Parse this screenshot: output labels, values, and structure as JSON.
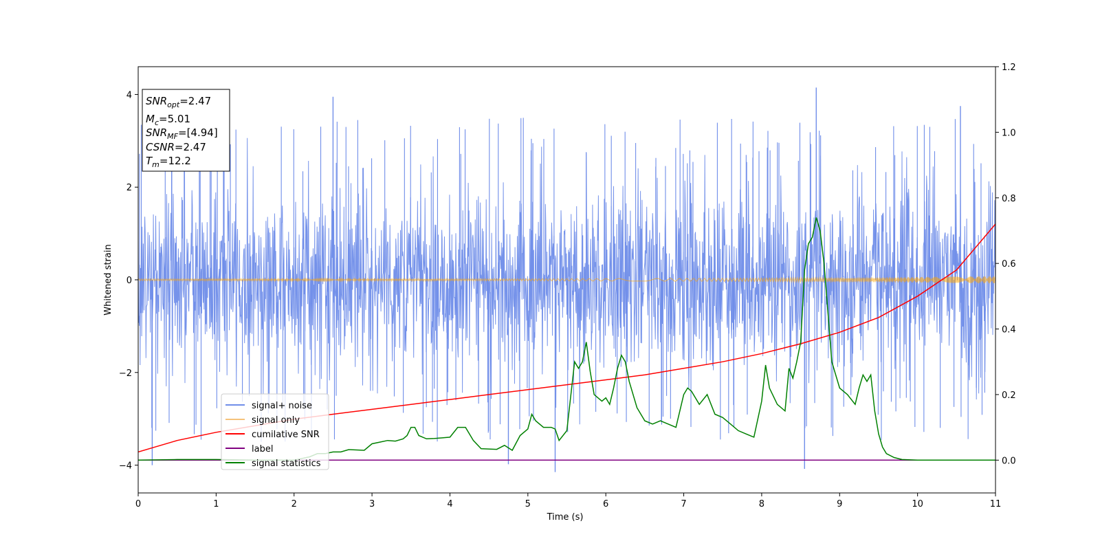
{
  "chart_data": {
    "type": "line",
    "xlabel": "Time (s)",
    "ylabel": "Whitened strain",
    "xlim": [
      0,
      11
    ],
    "ylim_left": [
      -4.6,
      4.6
    ],
    "ylim_right": [
      -0.1,
      1.2
    ],
    "x_ticks": [
      "0",
      "1",
      "2",
      "3",
      "4",
      "5",
      "6",
      "7",
      "8",
      "9",
      "10",
      "11"
    ],
    "y_ticks_left": [
      "−4",
      "−2",
      "0",
      "2",
      "4"
    ],
    "y_ticks_right": [
      "0.0",
      "0.2",
      "0.4",
      "0.6",
      "0.8",
      "1.0",
      "1.2"
    ],
    "grid": false,
    "legend_position": "lower-left",
    "colors": {
      "noise": "#4169E1",
      "signal_only": "#FFA500",
      "cumulative_snr": "#FF0000",
      "label": "#800080",
      "signal_statistics": "#008000"
    },
    "series": [
      {
        "name": "signal+ noise",
        "axis": "left",
        "style": "dense noise band, mostly between -2 and 2.3, spikes to about ±4",
        "approx_envelope": [
          -2.2,
          2.3
        ],
        "notable_spikes": [
          [
            0.18,
            -4.0
          ],
          [
            2.5,
            3.95
          ],
          [
            4.75,
            -3.98
          ],
          [
            5.35,
            -4.15
          ],
          [
            8.55,
            -4.08
          ],
          [
            8.7,
            4.15
          ],
          [
            10.55,
            3.75
          ]
        ]
      },
      {
        "name": "signal only",
        "axis": "left",
        "style": "thin band around 0, widening slightly toward the end",
        "amplitude_start": 0.02,
        "amplitude_end": 0.08
      },
      {
        "name": "cumilative SNR",
        "axis": "right",
        "x": [
          0,
          0.5,
          1,
          1.5,
          2,
          2.5,
          3,
          3.5,
          4,
          4.5,
          5,
          5.5,
          6,
          6.5,
          7,
          7.5,
          8,
          8.5,
          9,
          9.5,
          10,
          10.5,
          11
        ],
        "y": [
          0.025,
          0.06,
          0.085,
          0.105,
          0.125,
          0.14,
          0.155,
          0.17,
          0.185,
          0.2,
          0.215,
          0.23,
          0.245,
          0.26,
          0.28,
          0.3,
          0.325,
          0.355,
          0.39,
          0.435,
          0.5,
          0.58,
          0.72
        ]
      },
      {
        "name": "label",
        "axis": "right",
        "x": [
          0,
          11
        ],
        "y": [
          0.0,
          0.0
        ]
      },
      {
        "name": "signal statistics",
        "axis": "right",
        "x": [
          0,
          0.5,
          1,
          1.5,
          2,
          2.2,
          2.3,
          2.4,
          2.5,
          2.6,
          2.7,
          2.9,
          3.0,
          3.1,
          3.2,
          3.3,
          3.4,
          3.45,
          3.5,
          3.55,
          3.6,
          3.7,
          3.8,
          3.9,
          4.0,
          4.1,
          4.15,
          4.2,
          4.3,
          4.4,
          4.5,
          4.6,
          4.7,
          4.8,
          4.9,
          5.0,
          5.05,
          5.1,
          5.2,
          5.3,
          5.35,
          5.4,
          5.5,
          5.6,
          5.65,
          5.7,
          5.75,
          5.8,
          5.85,
          5.9,
          5.95,
          6.0,
          6.05,
          6.1,
          6.15,
          6.2,
          6.25,
          6.3,
          6.4,
          6.5,
          6.6,
          6.7,
          6.8,
          6.9,
          7.0,
          7.05,
          7.1,
          7.2,
          7.3,
          7.4,
          7.5,
          7.6,
          7.7,
          7.8,
          7.9,
          8.0,
          8.05,
          8.1,
          8.2,
          8.3,
          8.35,
          8.4,
          8.45,
          8.5,
          8.55,
          8.6,
          8.65,
          8.7,
          8.75,
          8.8,
          8.85,
          8.9,
          9.0,
          9.1,
          9.2,
          9.25,
          9.3,
          9.35,
          9.4,
          9.45,
          9.5,
          9.55,
          9.6,
          9.7,
          9.8,
          10.0,
          10.5,
          11.0
        ],
        "y": [
          0.0,
          0.002,
          0.002,
          0.0,
          0.0,
          0.01,
          0.02,
          0.02,
          0.025,
          0.025,
          0.032,
          0.03,
          0.05,
          0.055,
          0.06,
          0.058,
          0.065,
          0.075,
          0.1,
          0.1,
          0.075,
          0.065,
          0.066,
          0.068,
          0.07,
          0.1,
          0.1,
          0.1,
          0.06,
          0.035,
          0.034,
          0.033,
          0.045,
          0.03,
          0.075,
          0.095,
          0.14,
          0.12,
          0.1,
          0.1,
          0.095,
          0.06,
          0.09,
          0.3,
          0.28,
          0.3,
          0.36,
          0.27,
          0.2,
          0.19,
          0.18,
          0.19,
          0.17,
          0.22,
          0.28,
          0.32,
          0.3,
          0.24,
          0.16,
          0.12,
          0.11,
          0.12,
          0.11,
          0.1,
          0.2,
          0.22,
          0.21,
          0.17,
          0.2,
          0.14,
          0.13,
          0.11,
          0.09,
          0.08,
          0.07,
          0.18,
          0.29,
          0.22,
          0.17,
          0.15,
          0.28,
          0.25,
          0.3,
          0.36,
          0.58,
          0.66,
          0.68,
          0.74,
          0.7,
          0.6,
          0.45,
          0.3,
          0.22,
          0.2,
          0.17,
          0.22,
          0.26,
          0.24,
          0.26,
          0.15,
          0.08,
          0.04,
          0.02,
          0.008,
          0.002,
          0.0,
          0.0,
          0.0
        ]
      }
    ],
    "legend": [
      {
        "label": "signal+ noise",
        "color": "#6f8de9"
      },
      {
        "label": "signal only",
        "color": "#f5c27a"
      },
      {
        "label": "cumilative SNR",
        "color": "#ff0000"
      },
      {
        "label": "label",
        "color": "#800080"
      },
      {
        "label": "signal statistics",
        "color": "#008000"
      }
    ],
    "annotation": {
      "snr_opt": {
        "sym": "SNR",
        "sub": "opt",
        "val": "=2.47"
      },
      "mc": {
        "sym": "M",
        "sub": "c",
        "val": "=5.01"
      },
      "snr_mf": {
        "sym": "SNR",
        "sub": "MF",
        "val": "=[4.94]"
      },
      "csnr": {
        "sym": "CSNR",
        "val": "=2.47"
      },
      "tm": {
        "sym": "T",
        "sub": "m",
        "val": "=12.2"
      }
    }
  }
}
